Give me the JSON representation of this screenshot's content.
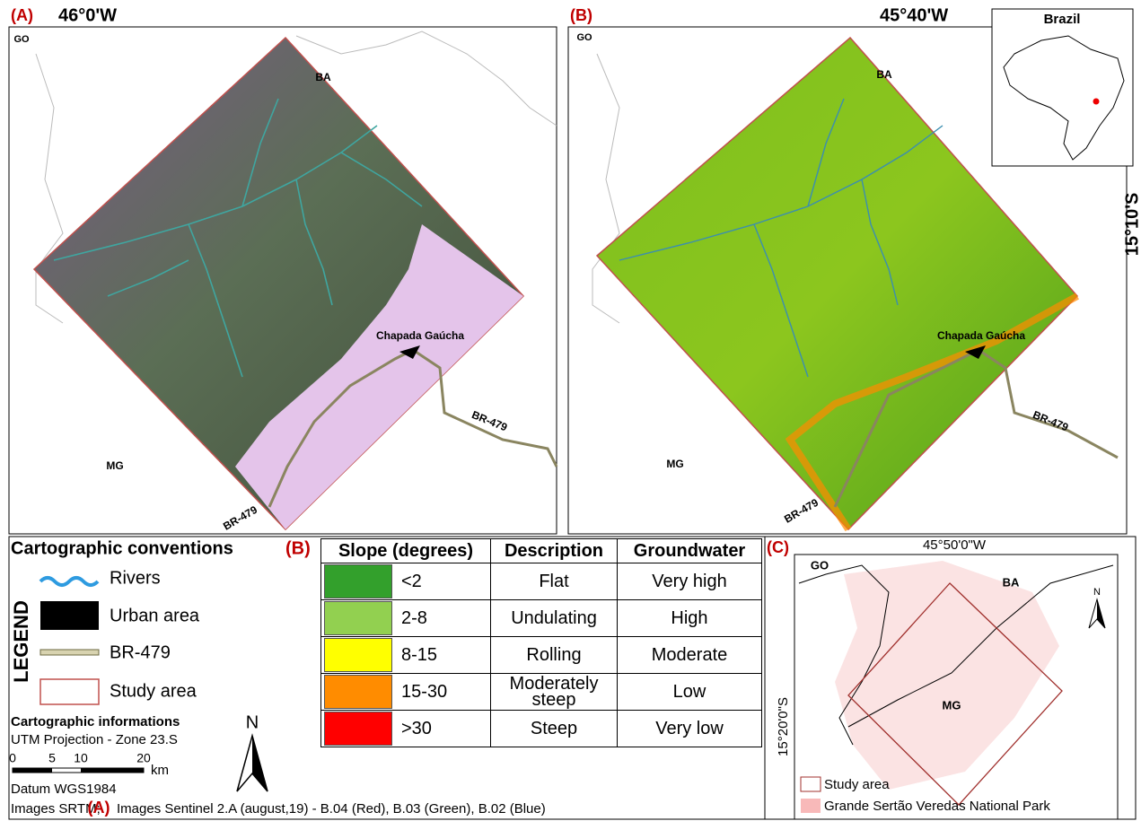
{
  "panel_a": {
    "label": "(A)",
    "longitude": "46°0'W",
    "states": [
      "GO",
      "BA",
      "MG"
    ],
    "town": "Chapada Gaúcha",
    "road_labels": [
      "BR-479",
      "BR-479"
    ]
  },
  "panel_b": {
    "label": "(B)",
    "longitude": "45°40'W",
    "latitude": "15°10'S",
    "states": [
      "GO",
      "BA",
      "MG"
    ],
    "town": "Chapada Gaúcha",
    "road_labels": [
      "BR-479",
      "BR-479"
    ]
  },
  "inset": {
    "title": "Brazil"
  },
  "legend": {
    "title": "Cartographic conventions",
    "side_label": "LEGEND",
    "items": [
      "Rivers",
      "Urban area",
      "BR-479",
      "Study area"
    ],
    "info_title": "Cartographic informations",
    "projection": "UTM Projection - Zone 23.S",
    "scale_labels": [
      "0",
      "5",
      "10",
      "20"
    ],
    "scale_unit": "km",
    "north": "N",
    "datum": "Datum WGS1984",
    "source_srtm": "Images SRTM;",
    "source_label": "(A)",
    "source_sentinel": "Images Sentinel 2.A (august,19) - B.04 (Red), B.03 (Green), B.02 (Blue)"
  },
  "slope_table": {
    "label": "(B)",
    "headers": [
      "Slope (degrees)",
      "Description",
      "Groundwater"
    ],
    "rows": [
      {
        "color": "#33a02c",
        "slope": "<2",
        "description": "Flat",
        "groundwater": "Very high"
      },
      {
        "color": "#92d050",
        "slope": "2-8",
        "description": "Undulating",
        "groundwater": "High"
      },
      {
        "color": "#ffff00",
        "slope": "8-15",
        "description": "Rolling",
        "groundwater": "Moderate"
      },
      {
        "color": "#ff8c00",
        "slope": "15-30",
        "description": "Moderately steep",
        "groundwater": "Low"
      },
      {
        "color": "#ff0000",
        "slope": ">30",
        "description": "Steep",
        "groundwater": "Very low"
      }
    ]
  },
  "panel_c": {
    "label": "(C)",
    "longitude": "45°50'0\"W",
    "latitude": "15°20'0\"S",
    "states": [
      "GO",
      "BA",
      "MG"
    ],
    "north": "N",
    "legend": [
      "Study area",
      "Grande Sertão Veredas National Park"
    ]
  }
}
